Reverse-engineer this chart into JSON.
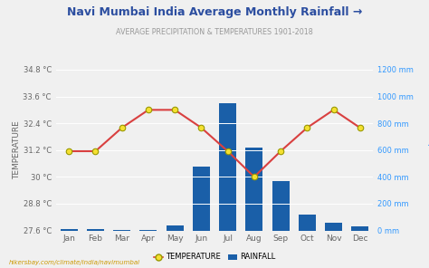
{
  "months": [
    "Jan",
    "Feb",
    "Mar",
    "Apr",
    "May",
    "Jun",
    "Jul",
    "Aug",
    "Sep",
    "Oct",
    "Nov",
    "Dec"
  ],
  "temperature": [
    31.15,
    31.15,
    32.2,
    33.0,
    33.0,
    32.2,
    31.15,
    30.0,
    31.15,
    32.2,
    33.0,
    32.2
  ],
  "rainfall": [
    8,
    10,
    3,
    3,
    40,
    480,
    950,
    620,
    370,
    120,
    60,
    30
  ],
  "title": "Navi Mumbai India Average Monthly Rainfall →",
  "subtitle": "AVERAGE PRECIPITATION & TEMPERATURES 1901-2018",
  "ylabel_left": "TEMPERATURE",
  "ylabel_right": "Precipitation",
  "temp_ylim": [
    27.6,
    34.8
  ],
  "rain_ylim": [
    0,
    1200
  ],
  "temp_yticks": [
    27.6,
    28.8,
    30.0,
    31.2,
    32.4,
    33.6,
    34.8
  ],
  "rain_yticks": [
    0,
    200,
    400,
    600,
    800,
    1000,
    1200
  ],
  "temp_yticklabels": [
    "27.6 °C",
    "28.8 °C",
    "30 °C",
    "31.2 °C",
    "32.4 °C",
    "33.6 °C",
    "34.8 °C"
  ],
  "rain_yticklabels": [
    "0 mm",
    "200 mm",
    "400 mm",
    "600 mm",
    "800 mm",
    "1000 mm",
    "1200 mm"
  ],
  "bar_color": "#1a5fa8",
  "line_color": "#d94040",
  "marker_face_color": "#f5e030",
  "marker_edge_color": "#999900",
  "background_color": "#f0f0f0",
  "plot_bg_color": "#f0f0f0",
  "title_color": "#2c4ea0",
  "subtitle_color": "#999999",
  "left_tick_color": "#666666",
  "right_tick_color": "#3399ff",
  "right_label_color": "#3399ff",
  "watermark": "hikersbay.com/climate/india/navimumbai",
  "watermark_color": "#cc9900",
  "legend_labels": [
    "TEMPERATURE",
    "RAINFALL"
  ],
  "grid_color": "#ffffff"
}
